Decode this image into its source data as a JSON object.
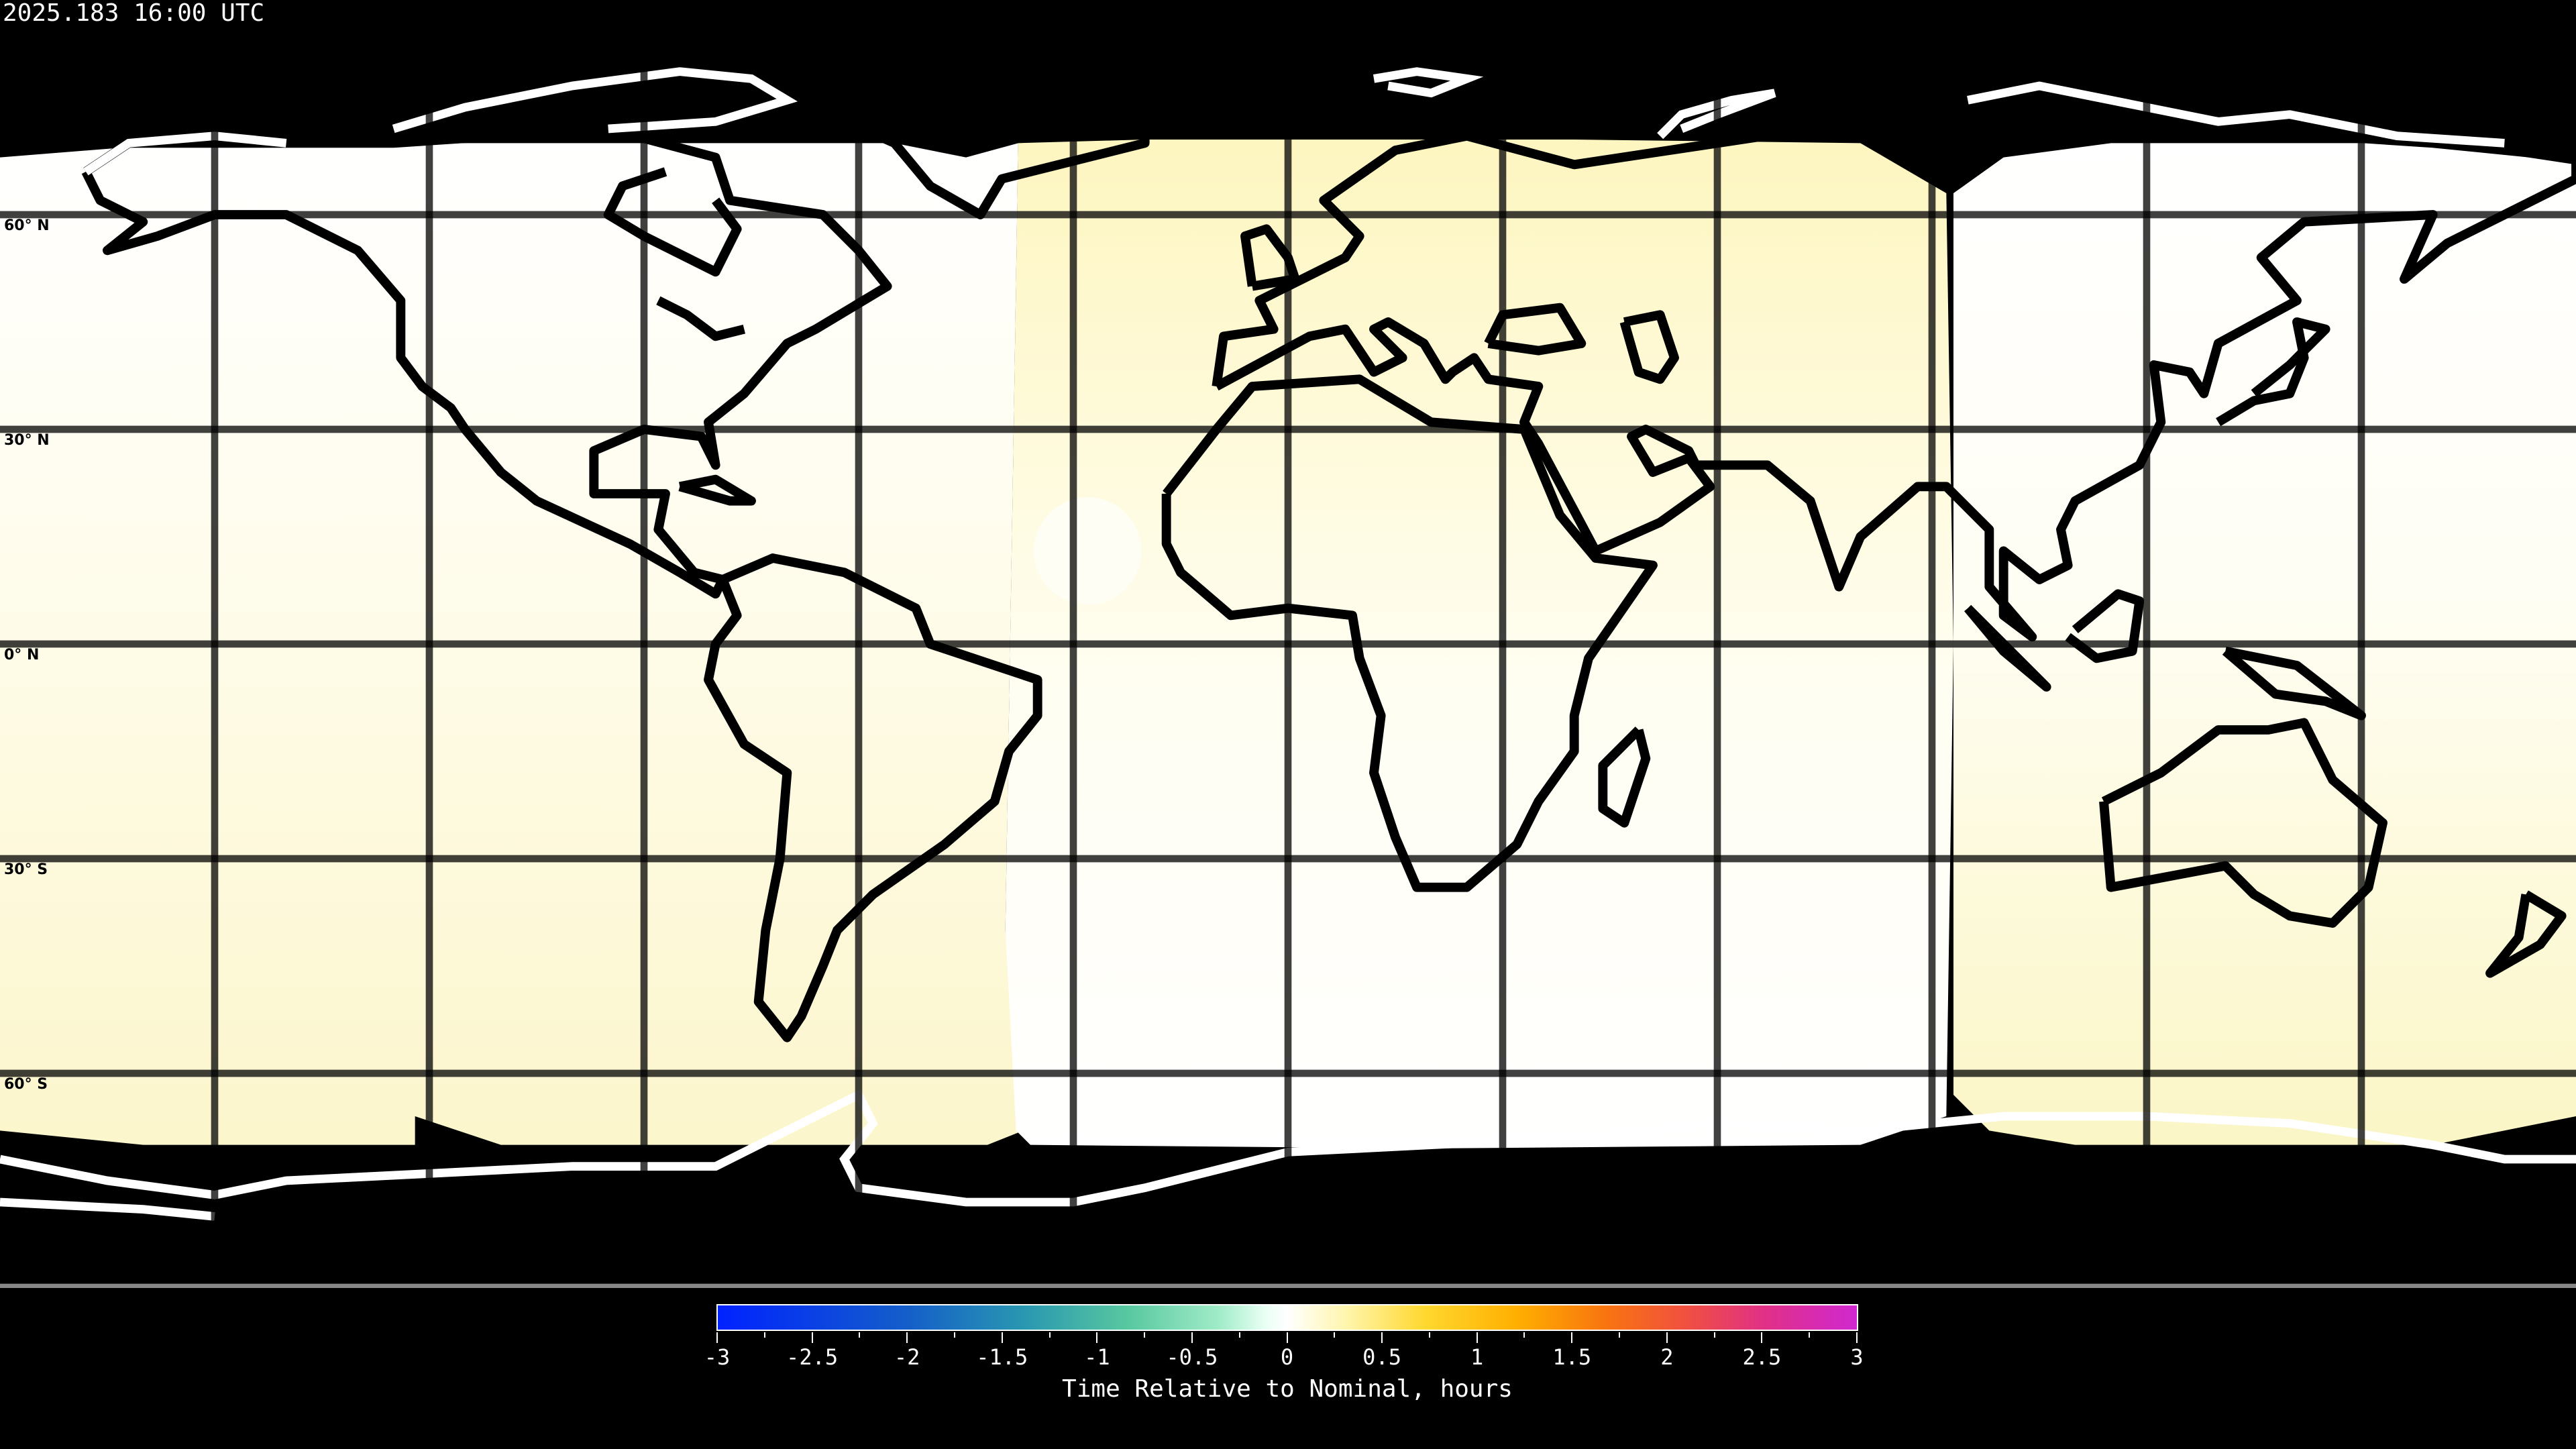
{
  "header": {
    "title": "2025.183 16:00 UTC"
  },
  "map": {
    "projection": "equirectangular",
    "lat_labels": [
      "60° N",
      "30° N",
      "0° N",
      "30° S",
      "60° S"
    ],
    "gridline_spacing_deg": 30,
    "colors": {
      "background": "#000000",
      "coastline_on_data": "#000000",
      "coastline_on_black": "#ffffff",
      "gridline": "#000000"
    }
  },
  "colorbar": {
    "label": "Time Relative to Nominal, hours",
    "range": [
      -3,
      3
    ],
    "tick_labels": [
      "-3",
      "-2.5",
      "-2",
      "-1.5",
      "-1",
      "-0.5",
      "0",
      "0.5",
      "1",
      "1.5",
      "2",
      "2.5",
      "3"
    ],
    "colors": [
      "#0022ff",
      "#2a98b0",
      "#a0ecc8",
      "#ffffff",
      "#ffd830",
      "#f87410",
      "#d028d0"
    ]
  }
}
